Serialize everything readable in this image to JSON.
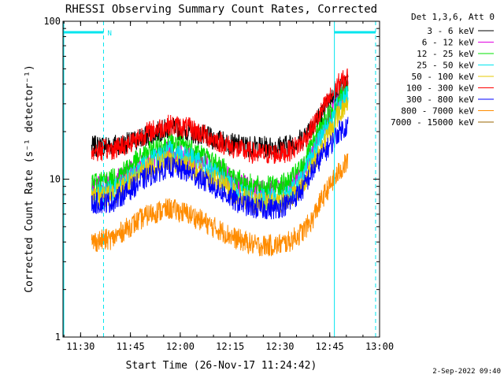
{
  "chart_data": {
    "type": "line",
    "title": "RHESSI Observing Summary Count Rates, Corrected",
    "xlabel": "Start Time (26-Nov-17 11:24:42)",
    "ylabel": "Corrected Count Rate (s⁻¹ detector⁻¹)",
    "y_scale": "log",
    "ylim": [
      1,
      100
    ],
    "y_ticks": [
      {
        "value": 1,
        "label": "1"
      },
      {
        "value": 10,
        "label": "10"
      },
      {
        "value": 100,
        "label": "100"
      }
    ],
    "xlim_minutes": [
      0,
      95.3
    ],
    "x_ticks": [
      {
        "minutes": 5.3,
        "label": "11:30"
      },
      {
        "minutes": 20.3,
        "label": "11:45"
      },
      {
        "minutes": 35.3,
        "label": "12:00"
      },
      {
        "minutes": 50.3,
        "label": "12:15"
      },
      {
        "minutes": 65.3,
        "label": "12:30"
      },
      {
        "minutes": 80.3,
        "label": "12:45"
      },
      {
        "minutes": 95.3,
        "label": "13:00"
      }
    ],
    "legend_header": "Det 1,3,6, Att 0",
    "legend_position": "top-right outside",
    "flags": [
      {
        "label": "N",
        "start": 0,
        "end": 12.2,
        "color": "#00e5ee"
      },
      {
        "label": "",
        "start": 81.7,
        "end": 94.1,
        "color": "#00e5ee"
      }
    ],
    "data_extent": [
      8.6,
      85.8
    ],
    "series": [
      {
        "name": "3 - 6 keV",
        "color": "#000000",
        "x": [
          8.6,
          15,
          20,
          26,
          32,
          38,
          45,
          52,
          58,
          64,
          68,
          72,
          75,
          78,
          81,
          83,
          85.8
        ],
        "y": [
          16,
          16.5,
          17,
          19,
          21,
          20,
          18,
          16.5,
          16,
          16,
          16.5,
          18,
          22,
          26,
          32,
          38,
          40
        ]
      },
      {
        "name": "6 - 12 keV",
        "color": "#e000e0",
        "x": [
          8.6,
          15,
          20,
          26,
          32,
          38,
          45,
          52,
          58,
          64,
          68,
          72,
          75,
          78,
          81,
          83,
          85.8
        ],
        "y": [
          9,
          9.5,
          11,
          13,
          15,
          14,
          12,
          9.5,
          8.5,
          8.5,
          9,
          11,
          15,
          20,
          26,
          32,
          36
        ]
      },
      {
        "name": "12 - 25 keV",
        "color": "#00e000",
        "x": [
          8.6,
          15,
          20,
          26,
          32,
          38,
          45,
          52,
          58,
          64,
          68,
          72,
          75,
          78,
          81,
          83,
          85.8
        ],
        "y": [
          9.5,
          10,
          12,
          15,
          17,
          16,
          13,
          10,
          9,
          9,
          9.5,
          12,
          16,
          22,
          27,
          33,
          37
        ]
      },
      {
        "name": "25 - 50 keV",
        "color": "#00e5ee",
        "x": [
          8.6,
          15,
          20,
          26,
          32,
          38,
          45,
          52,
          58,
          64,
          68,
          72,
          75,
          78,
          81,
          83,
          85.8
        ],
        "y": [
          8,
          8.5,
          10,
          13,
          15,
          14,
          11,
          8.5,
          7.5,
          7.5,
          8,
          10,
          14,
          19,
          24,
          30,
          34
        ]
      },
      {
        "name": "50 - 100 keV",
        "color": "#e6c800",
        "x": [
          8.6,
          15,
          20,
          26,
          32,
          38,
          45,
          52,
          58,
          64,
          68,
          72,
          75,
          78,
          81,
          83,
          85.8
        ],
        "y": [
          7.5,
          8,
          9.5,
          12,
          13,
          12,
          10,
          8,
          7,
          7,
          7.5,
          9,
          12,
          16,
          21,
          26,
          30
        ]
      },
      {
        "name": "100 - 300 keV",
        "color": "#ff0000",
        "x": [
          8.6,
          15,
          20,
          26,
          32,
          38,
          45,
          52,
          58,
          64,
          68,
          72,
          75,
          78,
          81,
          83,
          85.8
        ],
        "y": [
          15,
          15.5,
          17,
          20,
          22,
          21,
          18,
          15.5,
          14.5,
          14.5,
          15,
          17,
          21,
          27,
          34,
          40,
          44
        ]
      },
      {
        "name": "300 - 800 keV",
        "color": "#0000ff",
        "x": [
          8.6,
          15,
          20,
          26,
          32,
          38,
          45,
          52,
          58,
          64,
          68,
          72,
          75,
          78,
          81,
          83,
          85.8
        ],
        "y": [
          7,
          7.2,
          8.5,
          10.5,
          12,
          11,
          9,
          7.2,
          6.5,
          6.5,
          7,
          8.5,
          11,
          14,
          17,
          20,
          22
        ]
      },
      {
        "name": "800 - 7000 keV",
        "color": "#ff8c00",
        "x": [
          8.6,
          15,
          20,
          26,
          32,
          38,
          45,
          52,
          58,
          64,
          68,
          72,
          75,
          78,
          81,
          83,
          85.8
        ],
        "y": [
          4,
          4.2,
          5,
          6,
          6.5,
          6,
          5,
          4.2,
          3.8,
          3.8,
          4,
          4.6,
          5.5,
          7.5,
          9.5,
          11,
          13
        ]
      },
      {
        "name": "7000 - 15000 keV",
        "color": "#996600",
        "x": [],
        "y": []
      }
    ]
  },
  "footer": {
    "timestamp": "2-Sep-2022 09:40"
  }
}
